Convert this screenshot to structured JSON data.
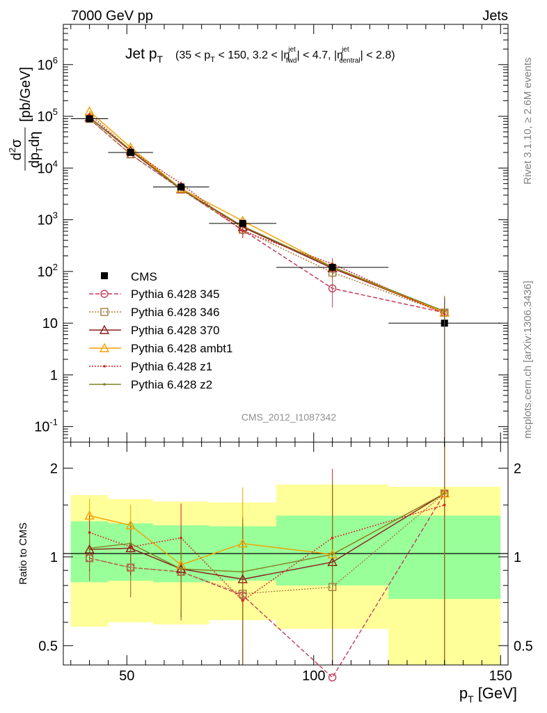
{
  "header": {
    "energy_label": "7000 GeV pp",
    "category_label": "Jets"
  },
  "side_labels": {
    "rivet": "Rivet 3.1.10, ≥ 2.6M events",
    "mcplots": "mcplots.cern.ch [arXiv:1306.3436]"
  },
  "chart_data": [
    {
      "type": "line",
      "title_main": "Jet p",
      "title_main_sub": "T",
      "title_cuts": "(35 < p_T < 150, 3.2 < |η_fwd^jet| < 4.7, |η_central^jet| < 2.8)",
      "ylabel": "d²σ/dp_T dη [pb/GeV]",
      "yscale": "log",
      "ylim": [
        0.05,
        6000000
      ],
      "xlim": [
        33,
        152
      ],
      "yticks": [
        "10^-1",
        "1",
        "10",
        "10^2",
        "10^3",
        "10^4",
        "10^5",
        "10^6"
      ],
      "analysis_label": "CMS_2012_I1087342",
      "data": {
        "name": "CMS",
        "x": [
          40,
          51,
          64.5,
          81,
          105,
          135
        ],
        "y": [
          90000,
          20000,
          4300,
          850,
          120,
          10
        ],
        "bins": [
          [
            35,
            45
          ],
          [
            45,
            57
          ],
          [
            57,
            72
          ],
          [
            72,
            90
          ],
          [
            90,
            120
          ],
          [
            120,
            150
          ]
        ]
      },
      "series": [
        {
          "name": "Pythia 6.428 345",
          "color": "#c23b5b",
          "dash": "dashed",
          "marker": "circle",
          "y": [
            89000,
            18400,
            3900,
            630,
            47,
            16
          ],
          "yerr": [
            3000,
            1000,
            400,
            150,
            27,
            16
          ]
        },
        {
          "name": "Pythia 6.428 346",
          "color": "#a47c3e",
          "dash": "dotted",
          "marker": "square",
          "y": [
            89000,
            18400,
            3850,
            640,
            95,
            16
          ],
          "yerr": [
            3000,
            1000,
            400,
            200,
            50,
            16
          ]
        },
        {
          "name": "Pythia 6.428 370",
          "color": "#8b1a1a",
          "dash": "solid",
          "marker": "triangle",
          "y": [
            95000,
            21500,
            3900,
            720,
            115,
            16
          ],
          "yerr": [
            3000,
            1000,
            400,
            150,
            40,
            16
          ]
        },
        {
          "name": "Pythia 6.428 ambt1",
          "color": "#f2a100",
          "dash": "solid",
          "marker": "triangle",
          "y": [
            125000,
            25000,
            4000,
            950,
            122,
            16
          ],
          "yerr": [
            3000,
            1000,
            400,
            200,
            40,
            16
          ]
        },
        {
          "name": "Pythia 6.428 z1",
          "color": "#d62020",
          "dash": "dotted",
          "marker": "dot",
          "y": [
            110000,
            22000,
            5000,
            600,
            140,
            15
          ],
          "yerr": [
            3000,
            1000,
            500,
            150,
            40,
            15
          ]
        },
        {
          "name": "Pythia 6.428 z2",
          "color": "#808020",
          "dash": "solid",
          "marker": "dot",
          "y": [
            96000,
            22500,
            3950,
            750,
            122,
            17
          ],
          "yerr": [
            3000,
            1000,
            400,
            150,
            40,
            17
          ]
        }
      ]
    },
    {
      "type": "line",
      "ylabel": "Ratio to CMS",
      "xlabel": "p_T [GeV]",
      "yscale": "log",
      "ylim": [
        0.43,
        2.45
      ],
      "xlim": [
        33,
        152
      ],
      "yticks": [
        0.5,
        1,
        2
      ],
      "xticks": [
        50,
        100,
        150
      ],
      "bands": {
        "bins": [
          [
            35,
            45
          ],
          [
            45,
            57
          ],
          [
            57,
            72
          ],
          [
            72,
            90
          ],
          [
            90,
            120
          ],
          [
            120,
            150
          ]
        ],
        "inner": [
          [
            0.82,
            1.32
          ],
          [
            0.83,
            1.3
          ],
          [
            0.82,
            1.28
          ],
          [
            0.83,
            1.27
          ],
          [
            0.8,
            1.38
          ],
          [
            0.72,
            1.38
          ]
        ],
        "outer": [
          [
            0.58,
            1.62
          ],
          [
            0.6,
            1.57
          ],
          [
            0.59,
            1.54
          ],
          [
            0.61,
            1.53
          ],
          [
            0.57,
            1.76
          ],
          [
            0.35,
            1.73
          ]
        ]
      },
      "series": [
        {
          "name": "Pythia 6.428 345",
          "y": [
            0.99,
            0.92,
            0.89,
            0.74,
            0.39,
            1.64
          ]
        },
        {
          "name": "Pythia 6.428 346",
          "y": [
            0.99,
            0.92,
            0.89,
            0.75,
            0.79,
            1.64
          ]
        },
        {
          "name": "Pythia 6.428 370",
          "y": [
            1.06,
            1.07,
            0.91,
            0.84,
            0.96,
            1.64
          ]
        },
        {
          "name": "Pythia 6.428 ambt1",
          "y": [
            1.38,
            1.28,
            0.94,
            1.11,
            1.02,
            1.64
          ]
        },
        {
          "name": "Pythia 6.428 z1",
          "y": [
            1.21,
            1.08,
            1.16,
            0.71,
            1.16,
            1.5
          ]
        },
        {
          "name": "Pythia 6.428 z2",
          "y": [
            1.07,
            1.11,
            0.91,
            0.89,
            1.02,
            1.64
          ]
        }
      ]
    }
  ]
}
